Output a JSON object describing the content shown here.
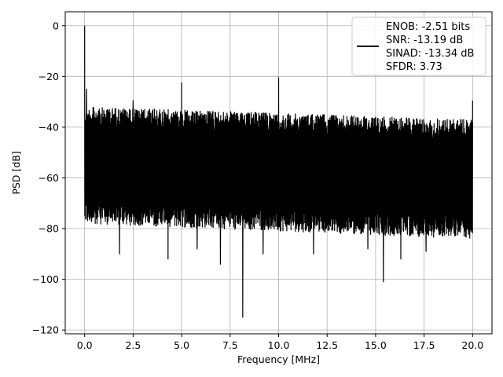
{
  "chart_data": {
    "type": "line",
    "xlabel": "Frequency [MHz]",
    "ylabel": "PSD [dB]",
    "xlim": [
      -1.0,
      21.0
    ],
    "ylim": [
      -121.5,
      5.5
    ],
    "x_ticks": [
      0.0,
      2.5,
      5.0,
      7.5,
      10.0,
      12.5,
      15.0,
      17.5,
      20.0
    ],
    "x_tick_labels": [
      "0.0",
      "2.5",
      "5.0",
      "7.5",
      "10.0",
      "12.5",
      "15.0",
      "17.5",
      "20.0"
    ],
    "y_ticks": [
      0,
      -20,
      -40,
      -60,
      -80,
      -100,
      -120
    ],
    "y_tick_labels": [
      "0",
      "−20",
      "−40",
      "−60",
      "−80",
      "−100",
      "−120"
    ],
    "grid": true,
    "legend_position": "top-right",
    "series": [
      {
        "color": "#000000",
        "legend_lines": [
          "ENOB: -2.51 bits",
          "SNR: -13.19 dB",
          "SINAD: -13.34 dB",
          "SFDR: 3.73"
        ],
        "x_range": [
          0.0,
          20.0
        ],
        "noise_top_start": -32,
        "noise_top_end": -37,
        "noise_bottom_start": -73,
        "noise_bottom_end": -79,
        "peaks": [
          {
            "x": 0.0,
            "y": 0.0
          },
          {
            "x": 0.1,
            "y": -25
          },
          {
            "x": 2.5,
            "y": -29.5
          },
          {
            "x": 5.0,
            "y": -22.5
          },
          {
            "x": 10.0,
            "y": -20.5
          },
          {
            "x": 20.0,
            "y": -29.5
          }
        ],
        "dips": [
          {
            "x": 1.8,
            "y": -90
          },
          {
            "x": 4.3,
            "y": -92
          },
          {
            "x": 5.8,
            "y": -88
          },
          {
            "x": 7.0,
            "y": -94
          },
          {
            "x": 8.15,
            "y": -115
          },
          {
            "x": 9.2,
            "y": -90
          },
          {
            "x": 11.8,
            "y": -90
          },
          {
            "x": 14.6,
            "y": -88
          },
          {
            "x": 15.4,
            "y": -101
          },
          {
            "x": 16.3,
            "y": -92
          },
          {
            "x": 17.6,
            "y": -89
          }
        ]
      }
    ]
  }
}
